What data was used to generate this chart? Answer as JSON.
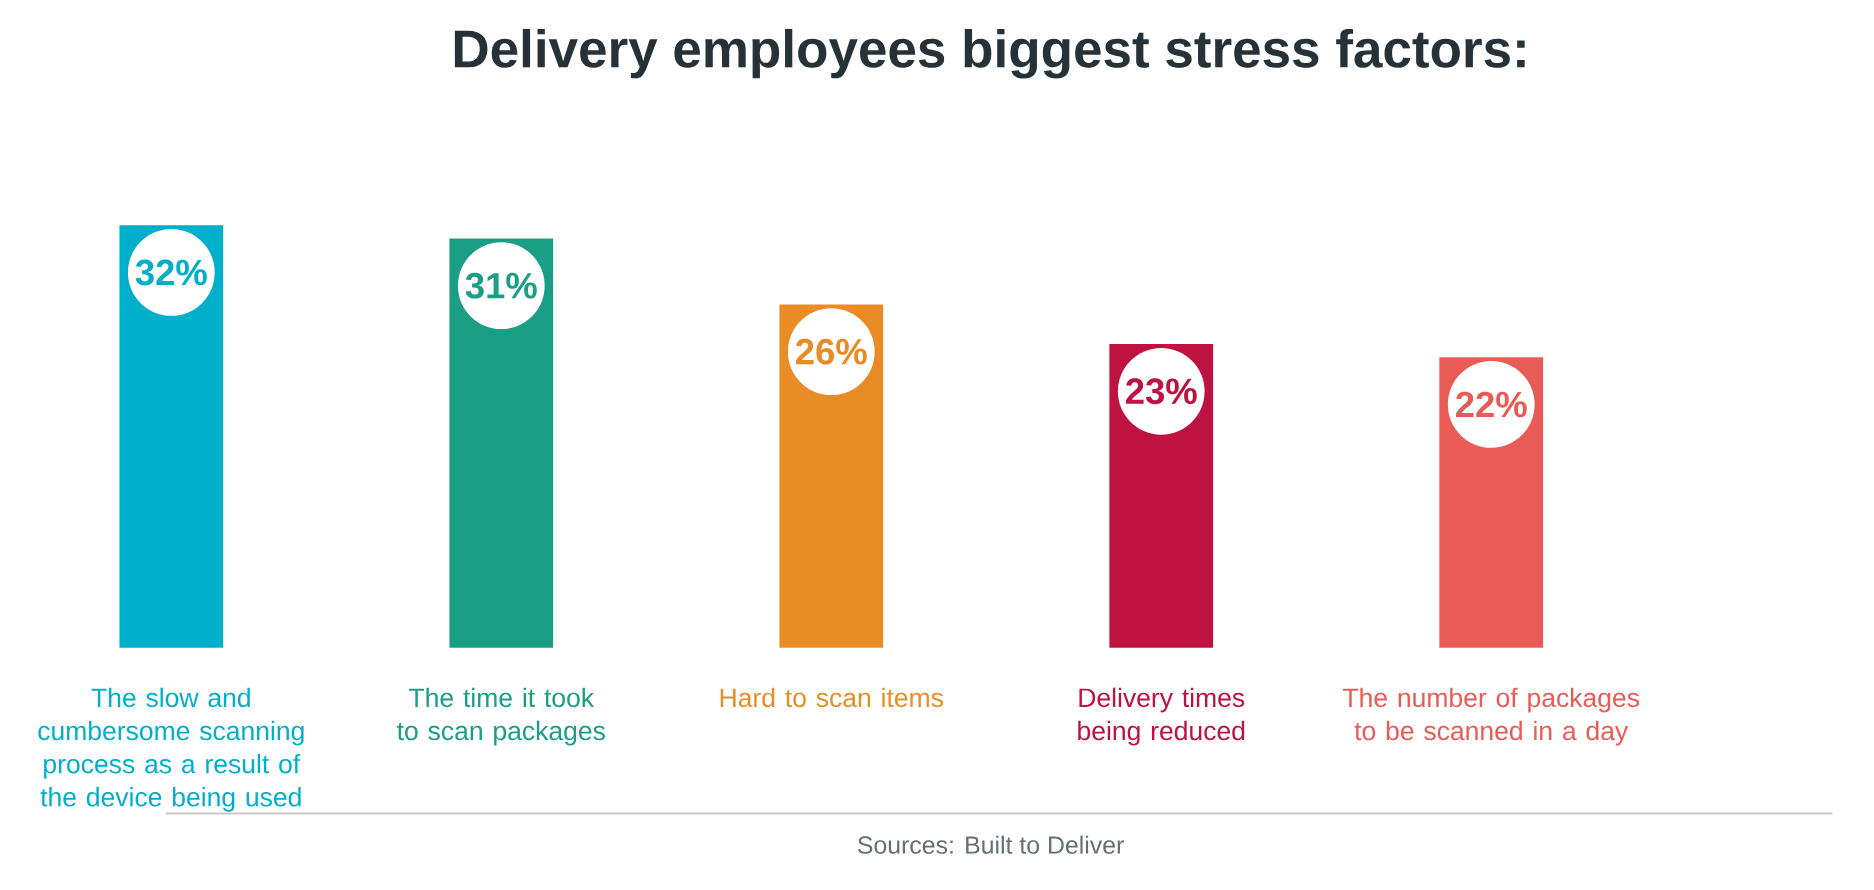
{
  "chart_data": {
    "type": "bar",
    "title": "Delivery employees biggest stress factors:",
    "categories": [
      "The slow and cumbersome scanning process as a result of the device being used",
      "The time it took to scan packages",
      "Hard to scan items",
      "Delivery times being reduced",
      "The number of packages to be scanned in a day"
    ],
    "values": [
      32,
      31,
      26,
      23,
      22
    ],
    "colors": [
      "#00afc9",
      "#1a9e85",
      "#e98c25",
      "#be1241",
      "#e95b55"
    ],
    "data_labels": true,
    "value_labels": [
      "32%",
      "31%",
      "26%",
      "23%",
      "22%"
    ],
    "annotations": [
      "Sources: Built to Deliver"
    ]
  }
}
